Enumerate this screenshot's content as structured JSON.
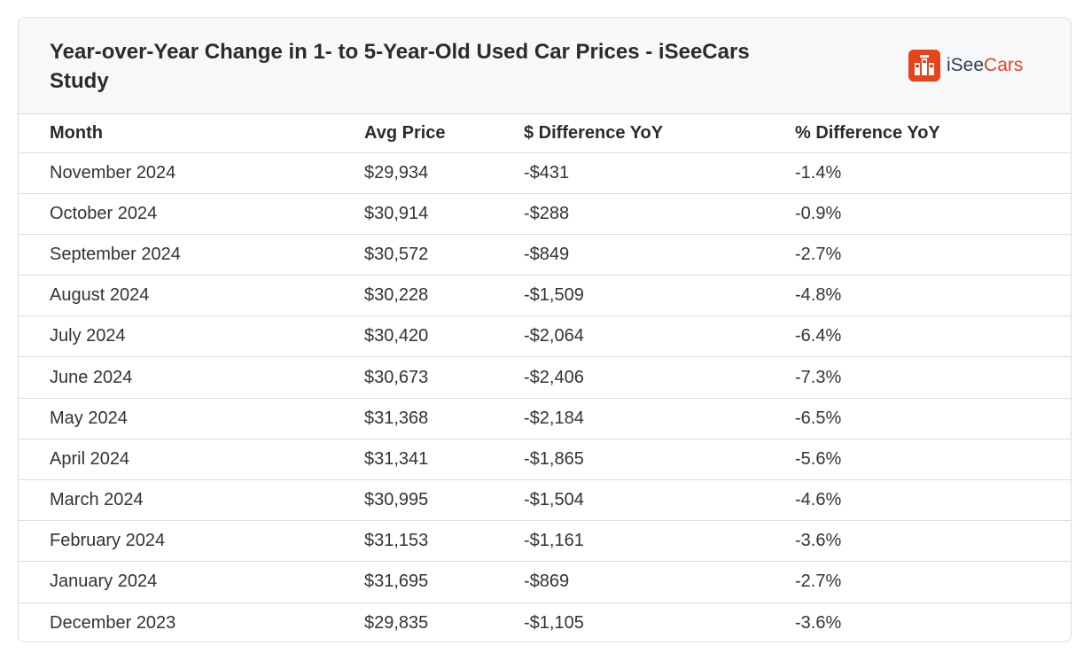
{
  "header": {
    "title": "Year-over-Year Change in 1- to 5-Year-Old Used Car Prices - iSeeCars Study",
    "logo": {
      "icon": "iseecars-logo-icon",
      "text_part1": "iSee",
      "text_part2": "Cars",
      "accent": "#e8431d",
      "dark": "#2f3b52"
    }
  },
  "table": {
    "columns": [
      "Month",
      "Avg Price",
      "$ Difference YoY",
      "% Difference YoY"
    ],
    "rows": [
      [
        "November 2024",
        "$29,934",
        "-$431",
        "-1.4%"
      ],
      [
        "October 2024",
        "$30,914",
        "-$288",
        "-0.9%"
      ],
      [
        "September 2024",
        "$30,572",
        "-$849",
        "-2.7%"
      ],
      [
        "August 2024",
        "$30,228",
        "-$1,509",
        "-4.8%"
      ],
      [
        "July 2024",
        "$30,420",
        "-$2,064",
        "-6.4%"
      ],
      [
        "June 2024",
        "$30,673",
        "-$2,406",
        "-7.3%"
      ],
      [
        "May 2024",
        "$31,368",
        "-$2,184",
        "-6.5%"
      ],
      [
        "April 2024",
        "$31,341",
        "-$1,865",
        "-5.6%"
      ],
      [
        "March 2024",
        "$30,995",
        "-$1,504",
        "-4.6%"
      ],
      [
        "February 2024",
        "$31,153",
        "-$1,161",
        "-3.6%"
      ],
      [
        "January 2024",
        "$31,695",
        "-$869",
        "-2.7%"
      ],
      [
        "December 2023",
        "$29,835",
        "-$1,105",
        "-3.6%"
      ]
    ]
  }
}
